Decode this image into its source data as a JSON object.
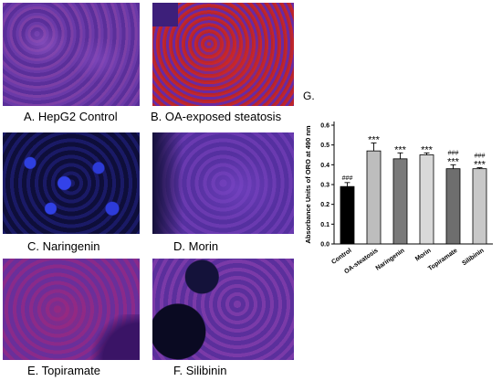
{
  "panels": [
    {
      "id": "A",
      "caption": "A. HepG2 Control"
    },
    {
      "id": "B",
      "caption": "B. OA-exposed steatosis"
    },
    {
      "id": "C",
      "caption": "C. Naringenin"
    },
    {
      "id": "D",
      "caption": "D. Morin"
    },
    {
      "id": "E",
      "caption": "E. Topiramate"
    },
    {
      "id": "F",
      "caption": "F. Silibinin"
    }
  ],
  "chart_data": {
    "type": "bar",
    "panel_label": "G.",
    "ylabel": "Absorbance Units of ORO at 490 nm",
    "xlabel": "",
    "ylim": [
      0,
      0.6
    ],
    "yticks": [
      "0.0",
      "0.1",
      "0.2",
      "0.3",
      "0.4",
      "0.5",
      "0.6"
    ],
    "grid": false,
    "categories": [
      "Control",
      "OA-steatosis",
      "Naringenin",
      "Morin",
      "Topiramate",
      "Silibinin"
    ],
    "values": [
      0.29,
      0.47,
      0.43,
      0.45,
      0.38,
      0.38
    ],
    "errors": [
      0.02,
      0.04,
      0.03,
      0.01,
      0.02,
      0.005
    ],
    "bar_colors": [
      "#000000",
      "#bdbdbd",
      "#7a7a7a",
      "#d9d9d9",
      "#6e6e6e",
      "#c8c8c8"
    ],
    "annotations": [
      {
        "category": "Control",
        "labels": [
          "###"
        ]
      },
      {
        "category": "OA-steatosis",
        "labels": [
          "***"
        ]
      },
      {
        "category": "Naringenin",
        "labels": [
          "***"
        ]
      },
      {
        "category": "Morin",
        "labels": [
          "***"
        ]
      },
      {
        "category": "Topiramate",
        "labels": [
          "###",
          "***"
        ]
      },
      {
        "category": "Silibinin",
        "labels": [
          "###",
          "***"
        ]
      }
    ]
  }
}
